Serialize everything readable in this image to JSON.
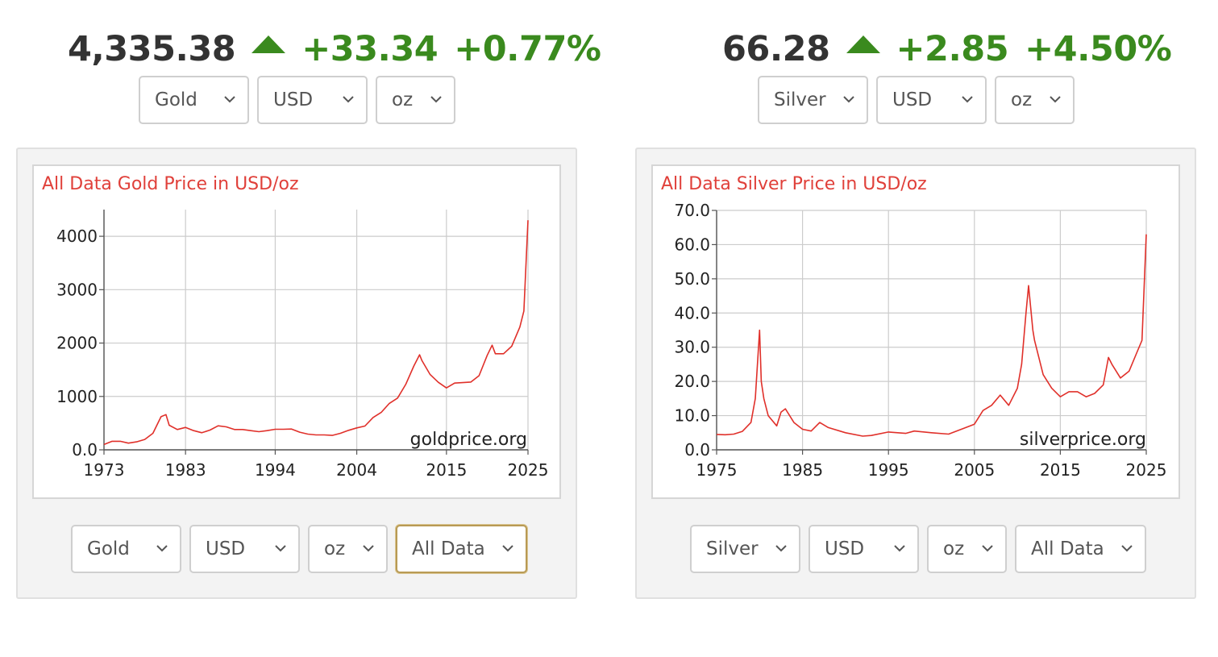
{
  "gold": {
    "quote": {
      "price": "4,335.38",
      "change": "+33.34",
      "percent": "+0.77%"
    },
    "top_selects": {
      "metal": "Gold",
      "currency": "USD",
      "unit": "oz"
    },
    "bottom_selects": {
      "metal": "Gold",
      "currency": "USD",
      "unit": "oz",
      "range": "All Data"
    },
    "watermark": "goldprice.org"
  },
  "silver": {
    "quote": {
      "price": "66.28",
      "change": "+2.85",
      "percent": "+4.50%"
    },
    "top_selects": {
      "metal": "Silver",
      "currency": "USD",
      "unit": "oz"
    },
    "bottom_selects": {
      "metal": "Silver",
      "currency": "USD",
      "unit": "oz",
      "range": "All Data"
    },
    "watermark": "silverprice.org"
  },
  "colors": {
    "accent_up": "#3a8a1e",
    "line": "#e0302a",
    "title": "#e0403a",
    "focus_border": "#b89a54"
  },
  "icons": {
    "up": "triangle-up-icon",
    "dropdown": "chevron-down-icon"
  },
  "chart_data": [
    {
      "type": "line",
      "title": "All Data Gold Price in USD/oz",
      "xlabel": "",
      "ylabel": "",
      "x_ticks": [
        "1973",
        "1983",
        "1994",
        "2004",
        "2015",
        "2025"
      ],
      "y_ticks": [
        "0.0",
        "1000",
        "2000",
        "3000",
        "4000"
      ],
      "xlim": [
        1973,
        2025
      ],
      "ylim": [
        0,
        4500
      ],
      "grid": true,
      "series": [
        {
          "x": [
            1973,
            1974,
            1975,
            1976,
            1977,
            1978,
            1979,
            1980,
            1980.6,
            1981,
            1982,
            1983,
            1984,
            1985,
            1986,
            1987,
            1988,
            1989,
            1990,
            1991,
            1992,
            1993,
            1994,
            1995,
            1996,
            1997,
            1998,
            1999,
            2000,
            2001,
            2002,
            2003,
            2004,
            2005,
            2006,
            2007,
            2008,
            2009,
            2010,
            2011,
            2011.7,
            2012,
            2013,
            2014,
            2015,
            2016,
            2017,
            2018,
            2019,
            2020,
            2020.6,
            2021,
            2022,
            2023,
            2024,
            2024.5,
            2025
          ],
          "y": [
            100,
            160,
            160,
            125,
            150,
            195,
            310,
            620,
            660,
            460,
            380,
            420,
            360,
            320,
            370,
            450,
            430,
            380,
            380,
            360,
            340,
            360,
            385,
            385,
            390,
            330,
            295,
            280,
            280,
            270,
            310,
            365,
            410,
            445,
            605,
            700,
            870,
            970,
            1225,
            1570,
            1780,
            1670,
            1410,
            1265,
            1160,
            1250,
            1260,
            1270,
            1390,
            1770,
            1960,
            1800,
            1800,
            1940,
            2300,
            2600,
            4300
          ]
        }
      ]
    },
    {
      "type": "line",
      "title": "All Data Silver Price in USD/oz",
      "xlabel": "",
      "ylabel": "",
      "x_ticks": [
        "1975",
        "1985",
        "1995",
        "2005",
        "2015",
        "2025"
      ],
      "y_ticks": [
        "0.0",
        "10.0",
        "20.0",
        "30.0",
        "40.0",
        "50.0",
        "60.0",
        "70.0"
      ],
      "xlim": [
        1975,
        2025
      ],
      "ylim": [
        0,
        70
      ],
      "grid": true,
      "series": [
        {
          "x": [
            1975,
            1976,
            1977,
            1978,
            1979,
            1979.5,
            1980,
            1980.2,
            1980.5,
            1981,
            1982,
            1982.5,
            1983,
            1984,
            1985,
            1986,
            1987,
            1988,
            1990,
            1992,
            1993,
            1995,
            1997,
            1998,
            2000,
            2002,
            2004,
            2005,
            2006,
            2007,
            2008,
            2009,
            2010,
            2010.5,
            2011,
            2011.3,
            2011.8,
            2012,
            2013,
            2014,
            2015,
            2016,
            2017,
            2018,
            2019,
            2020,
            2020.6,
            2021,
            2022,
            2023,
            2024,
            2024.5,
            2025
          ],
          "y": [
            4.5,
            4.4,
            4.6,
            5.4,
            8.0,
            15,
            35,
            20,
            15,
            10,
            7,
            11,
            12,
            8,
            6,
            5.5,
            8.0,
            6.5,
            5.0,
            4.0,
            4.2,
            5.2,
            4.8,
            5.5,
            5.0,
            4.6,
            6.5,
            7.5,
            11.5,
            13,
            16,
            13,
            18,
            25,
            40,
            48,
            35,
            32,
            22,
            18,
            15.5,
            17,
            17,
            15.5,
            16.5,
            19,
            27,
            25,
            21,
            23,
            29,
            32,
            63
          ]
        }
      ]
    }
  ]
}
